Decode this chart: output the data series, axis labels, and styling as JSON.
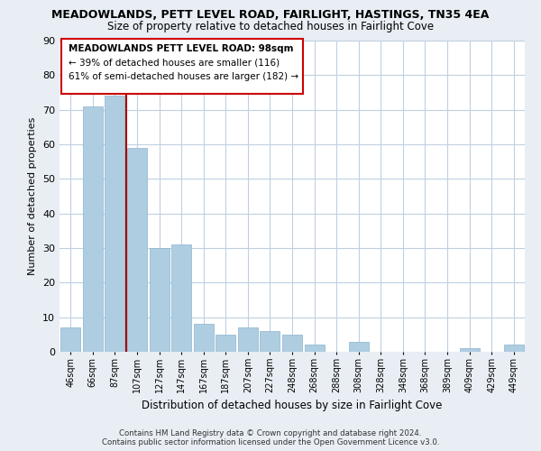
{
  "title": "MEADOWLANDS, PETT LEVEL ROAD, FAIRLIGHT, HASTINGS, TN35 4EA",
  "subtitle": "Size of property relative to detached houses in Fairlight Cove",
  "xlabel": "Distribution of detached houses by size in Fairlight Cove",
  "ylabel": "Number of detached properties",
  "bar_labels": [
    "46sqm",
    "66sqm",
    "87sqm",
    "107sqm",
    "127sqm",
    "147sqm",
    "167sqm",
    "187sqm",
    "207sqm",
    "227sqm",
    "248sqm",
    "268sqm",
    "288sqm",
    "308sqm",
    "328sqm",
    "348sqm",
    "368sqm",
    "389sqm",
    "409sqm",
    "429sqm",
    "449sqm"
  ],
  "bar_values": [
    7,
    71,
    74,
    59,
    30,
    31,
    8,
    5,
    7,
    6,
    5,
    2,
    0,
    3,
    0,
    0,
    0,
    0,
    1,
    0,
    2
  ],
  "bar_color": "#aecde0",
  "vline_color": "#aa0000",
  "vline_x": 2.5,
  "ylim": [
    0,
    90
  ],
  "yticks": [
    0,
    10,
    20,
    30,
    40,
    50,
    60,
    70,
    80,
    90
  ],
  "annotation_title": "MEADOWLANDS PETT LEVEL ROAD: 98sqm",
  "annotation_line1": "← 39% of detached houses are smaller (116)",
  "annotation_line2": "61% of semi-detached houses are larger (182) →",
  "footer1": "Contains HM Land Registry data © Crown copyright and database right 2024.",
  "footer2": "Contains public sector information licensed under the Open Government Licence v3.0.",
  "background_color": "#e8eef4",
  "plot_bg_color": "#ffffff",
  "grid_color": "#c0d0e0",
  "title_fontsize": 9,
  "subtitle_fontsize": 8.5,
  "ylabel_fontsize": 8,
  "xlabel_fontsize": 8.5
}
